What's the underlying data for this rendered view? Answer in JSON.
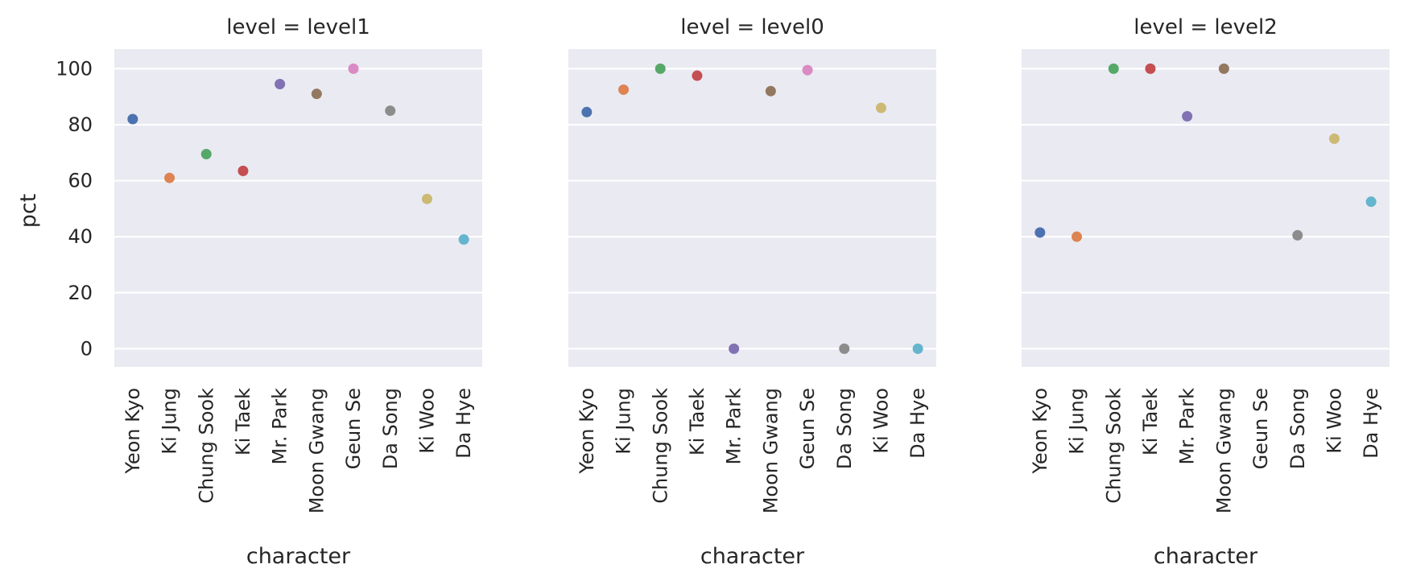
{
  "chart_data": {
    "type": "scatter",
    "kind": "strip plot (faceted)",
    "y_label": "pct",
    "x_label": "character",
    "ylim": [
      -6.5,
      107
    ],
    "yticks": [
      0,
      20,
      40,
      60,
      80,
      100
    ],
    "grid": true,
    "legend": "none",
    "categories": [
      "Yeon Kyo",
      "Ki Jung",
      "Chung Sook",
      "Ki Taek",
      "Mr. Park",
      "Moon Gwang",
      "Geun Se",
      "Da Song",
      "Ki Woo",
      "Da Hye"
    ],
    "category_colors": [
      "#4c72b0",
      "#dd8452",
      "#55a868",
      "#c44e52",
      "#8172b3",
      "#937860",
      "#da8bc3",
      "#8c8c8c",
      "#ccb974",
      "#64b5cd"
    ],
    "panels": [
      {
        "title": "level = level1",
        "values": [
          82,
          61,
          69.5,
          63.5,
          94.5,
          91,
          100,
          85,
          53.5,
          39
        ]
      },
      {
        "title": "level = level0",
        "values": [
          84.5,
          92.5,
          100,
          97.5,
          0,
          92,
          99.5,
          0,
          86,
          0
        ]
      },
      {
        "title": "level = level2",
        "values": [
          41.5,
          40,
          100,
          100,
          83,
          100,
          null,
          40.5,
          75,
          52.5
        ]
      }
    ]
  }
}
